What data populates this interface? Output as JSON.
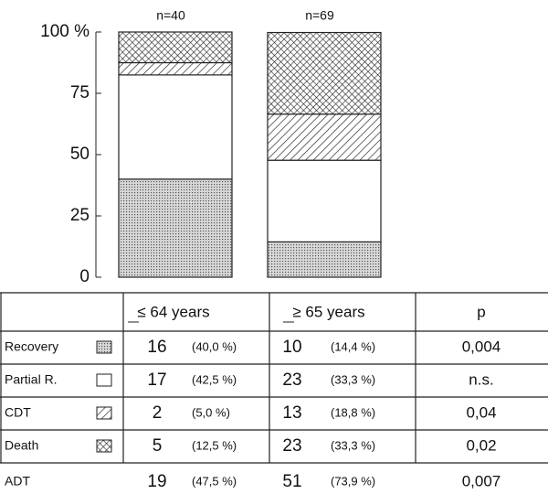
{
  "chart_data": {
    "type": "stacked_bar",
    "categories": [
      "n=40",
      "n=69"
    ],
    "series": [
      {
        "name": "Recovery",
        "pattern": "dots",
        "values": [
          40.0,
          14.4
        ]
      },
      {
        "name": "Partial R.",
        "pattern": "white",
        "values": [
          42.5,
          33.3
        ]
      },
      {
        "name": "CDT",
        "pattern": "hatch",
        "values": [
          5.0,
          18.8
        ]
      },
      {
        "name": "Death",
        "pattern": "cross",
        "values": [
          12.5,
          33.3
        ]
      }
    ],
    "ylim": [
      0,
      100
    ],
    "yticks": [
      0,
      25,
      50,
      75,
      {
        "value": 100,
        "label": "100 %"
      }
    ]
  },
  "table": {
    "header": [
      "≤ 64 years",
      "≥ 65 years",
      "p"
    ],
    "rows": [
      [
        16,
        "(40,0 %)",
        10,
        "(14,4 %)",
        "0,004"
      ],
      [
        17,
        "(42,5 %)",
        23,
        "(33,3 %)",
        "n.s."
      ],
      [
        2,
        "(5,0 %)",
        13,
        "(18,8 %)",
        "0,04"
      ],
      [
        5,
        "(12,5 %)",
        23,
        "(33,3 %)",
        "0,02"
      ]
    ],
    "footer_row": {
      "label": "ADT",
      "cells": [
        19,
        "(47,5 %)",
        51,
        "(73,9 %)",
        "0,007"
      ]
    }
  }
}
